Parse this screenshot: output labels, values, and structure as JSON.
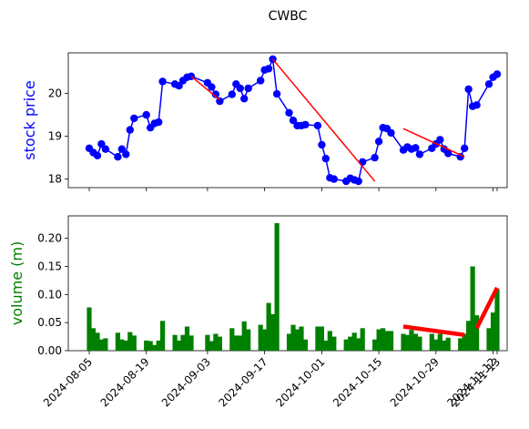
{
  "chart_data": {
    "title": "CWBC",
    "x_dates": [
      "2024-08-05",
      "2024-08-06",
      "2024-08-07",
      "2024-08-08",
      "2024-08-09",
      "2024-08-12",
      "2024-08-13",
      "2024-08-14",
      "2024-08-15",
      "2024-08-16",
      "2024-08-19",
      "2024-08-20",
      "2024-08-21",
      "2024-08-22",
      "2024-08-23",
      "2024-08-26",
      "2024-08-27",
      "2024-08-28",
      "2024-08-29",
      "2024-08-30",
      "2024-09-03",
      "2024-09-04",
      "2024-09-05",
      "2024-09-06",
      "2024-09-09",
      "2024-09-10",
      "2024-09-11",
      "2024-09-12",
      "2024-09-13",
      "2024-09-16",
      "2024-09-17",
      "2024-09-18",
      "2024-09-19",
      "2024-09-20",
      "2024-09-23",
      "2024-09-24",
      "2024-09-25",
      "2024-09-26",
      "2024-09-27",
      "2024-09-30",
      "2024-10-01",
      "2024-10-02",
      "2024-10-03",
      "2024-10-04",
      "2024-10-07",
      "2024-10-08",
      "2024-10-09",
      "2024-10-10",
      "2024-10-11",
      "2024-10-14",
      "2024-10-15",
      "2024-10-16",
      "2024-10-17",
      "2024-10-18",
      "2024-10-21",
      "2024-10-22",
      "2024-10-23",
      "2024-10-24",
      "2024-10-25",
      "2024-10-28",
      "2024-10-29",
      "2024-10-30",
      "2024-10-31",
      "2024-11-01",
      "2024-11-04",
      "2024-11-05",
      "2024-11-06",
      "2024-11-07",
      "2024-11-08",
      "2024-11-11",
      "2024-11-12",
      "2024-11-13"
    ],
    "price_panel": {
      "type": "line",
      "ylabel": "stock price",
      "ylim": [
        17.8,
        20.95
      ],
      "yticks": [
        18,
        19,
        20
      ],
      "line_color": "#0000ff",
      "series": [
        {
          "values": [
            18.72,
            18.62,
            18.55,
            18.82,
            18.7,
            18.52,
            18.7,
            18.58,
            19.15,
            19.42,
            19.5,
            19.2,
            19.3,
            19.33,
            20.28,
            20.22,
            20.18,
            20.3,
            20.38,
            20.4,
            20.25,
            20.15,
            19.98,
            19.82,
            19.98,
            20.22,
            20.12,
            19.88,
            20.12,
            20.3,
            20.55,
            20.58,
            20.8,
            19.99,
            19.55,
            19.37,
            19.25,
            19.25,
            19.27,
            19.25,
            18.8,
            18.48,
            18.03,
            18.0,
            17.95,
            18.02,
            17.98,
            17.95,
            18.4,
            18.5,
            18.88,
            19.2,
            19.18,
            19.08,
            18.68,
            18.75,
            18.7,
            18.73,
            18.58,
            18.72,
            18.82,
            18.92,
            18.7,
            18.6,
            18.52,
            18.72,
            20.1,
            19.7,
            19.73,
            20.22,
            20.38,
            20.45
          ]
        }
      ],
      "trend_lines": [
        {
          "from": "2024-08-30",
          "from_value": 20.4,
          "to": "2024-09-06",
          "to_value": 19.85,
          "color": "#ff0000"
        },
        {
          "from": "2024-09-19",
          "from_value": 20.8,
          "to": "2024-10-14",
          "to_value": 17.95,
          "color": "#ff0000"
        },
        {
          "from": "2024-10-21",
          "from_value": 19.18,
          "to": "2024-11-05",
          "to_value": 18.52,
          "color": "#ff0000"
        }
      ]
    },
    "volume_panel": {
      "type": "bar",
      "ylabel": "volume (m)",
      "ylim": [
        0,
        0.24
      ],
      "yticks": [
        "0.00",
        "0.05",
        "0.10",
        "0.15",
        "0.20"
      ],
      "bar_color": "#008000",
      "series": [
        {
          "values": [
            0.077,
            0.04,
            0.032,
            0.02,
            0.022,
            0.032,
            0.02,
            0.018,
            0.033,
            0.027,
            0.018,
            0.017,
            0.01,
            0.018,
            0.053,
            0.028,
            0.018,
            0.028,
            0.043,
            0.027,
            0.028,
            0.017,
            0.03,
            0.025,
            0.04,
            0.027,
            0.027,
            0.052,
            0.038,
            0.046,
            0.038,
            0.085,
            0.065,
            0.227,
            0.03,
            0.046,
            0.038,
            0.043,
            0.02,
            0.043,
            0.043,
            0.018,
            0.035,
            0.025,
            0.02,
            0.025,
            0.032,
            0.022,
            0.04,
            0.02,
            0.038,
            0.04,
            0.035,
            0.035,
            0.03,
            0.028,
            0.037,
            0.03,
            0.025,
            0.03,
            0.02,
            0.03,
            0.018,
            0.023,
            0.022,
            0.03,
            0.053,
            0.15,
            0.063,
            0.04,
            0.068,
            0.11
          ]
        }
      ],
      "trend_lines": [
        {
          "from": "2024-10-21",
          "from_value": 0.043,
          "to": "2024-11-05",
          "to_value": 0.028,
          "color": "#ff0000",
          "weight": "thick"
        },
        {
          "from": "2024-11-08",
          "from_value": 0.04,
          "to": "2024-11-13",
          "to_value": 0.112,
          "color": "#ff0000",
          "weight": "thick"
        }
      ]
    },
    "xticks": [
      "2024-08-05",
      "2024-08-19",
      "2024-09-03",
      "2024-09-17",
      "2024-10-01",
      "2024-10-15",
      "2024-10-29",
      "2024-11-12",
      "2024-11-13"
    ],
    "label_colors": {
      "price": "#0000ff",
      "volume": "#008000"
    }
  }
}
